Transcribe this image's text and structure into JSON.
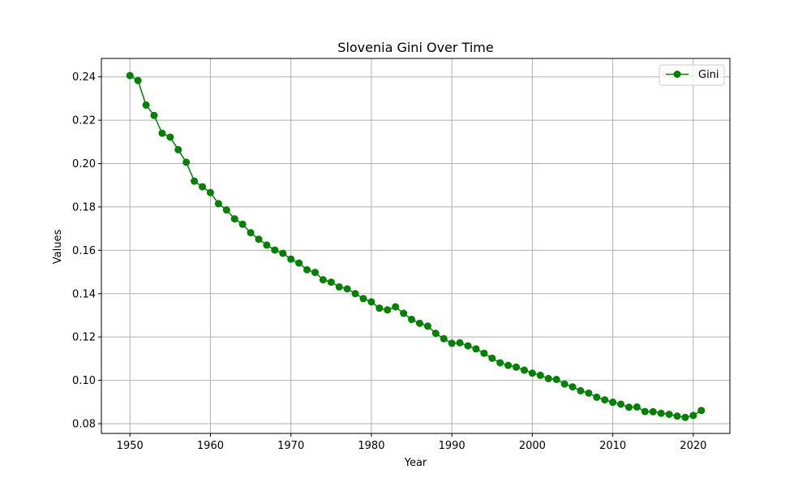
{
  "chart_data": {
    "type": "line",
    "title": "Slovenia Gini Over Time",
    "xlabel": "Year",
    "ylabel": "Values",
    "xlim": [
      1946.45,
      2024.55
    ],
    "ylim": [
      0.0755,
      0.2485
    ],
    "xticks": [
      1950,
      1960,
      1970,
      1980,
      1990,
      2000,
      2010,
      2020
    ],
    "yticks": [
      0.08,
      0.1,
      0.12,
      0.14,
      0.16,
      0.18,
      0.2,
      0.22,
      0.24
    ],
    "ytick_labels": [
      "0.08",
      "0.10",
      "0.12",
      "0.14",
      "0.16",
      "0.18",
      "0.20",
      "0.22",
      "0.24"
    ],
    "grid": true,
    "legend_position": "top-right",
    "series": [
      {
        "name": "Gini",
        "color": "#008000",
        "marker": "circle",
        "x": [
          1950,
          1951,
          1952,
          1953,
          1954,
          1955,
          1956,
          1957,
          1958,
          1959,
          1960,
          1961,
          1962,
          1963,
          1964,
          1965,
          1966,
          1967,
          1968,
          1969,
          1970,
          1971,
          1972,
          1973,
          1974,
          1975,
          1976,
          1977,
          1978,
          1979,
          1980,
          1981,
          1982,
          1983,
          1984,
          1985,
          1986,
          1987,
          1988,
          1989,
          1990,
          1991,
          1992,
          1993,
          1994,
          1995,
          1996,
          1997,
          1998,
          1999,
          2000,
          2001,
          2002,
          2003,
          2004,
          2005,
          2006,
          2007,
          2008,
          2009,
          2010,
          2011,
          2012,
          2013,
          2014,
          2015,
          2016,
          2017,
          2018,
          2019,
          2020,
          2021
        ],
        "y": [
          0.2406,
          0.2383,
          0.227,
          0.2222,
          0.214,
          0.2122,
          0.2064,
          0.2006,
          0.1919,
          0.1893,
          0.1866,
          0.1815,
          0.1786,
          0.1745,
          0.172,
          0.1681,
          0.1651,
          0.1624,
          0.1601,
          0.1586,
          0.1559,
          0.1541,
          0.151,
          0.1498,
          0.1464,
          0.1453,
          0.1431,
          0.1422,
          0.14,
          0.1377,
          0.1362,
          0.1333,
          0.1325,
          0.1339,
          0.1309,
          0.1281,
          0.1263,
          0.125,
          0.1217,
          0.1192,
          0.1171,
          0.1173,
          0.1159,
          0.1145,
          0.1125,
          0.1102,
          0.1081,
          0.1069,
          0.1061,
          0.1047,
          0.1033,
          0.1023,
          0.1008,
          0.1004,
          0.0983,
          0.097,
          0.0952,
          0.0941,
          0.0922,
          0.091,
          0.0899,
          0.089,
          0.0876,
          0.0877,
          0.0856,
          0.0855,
          0.0848,
          0.0843,
          0.0835,
          0.0829,
          0.0838,
          0.0861
        ]
      }
    ]
  }
}
